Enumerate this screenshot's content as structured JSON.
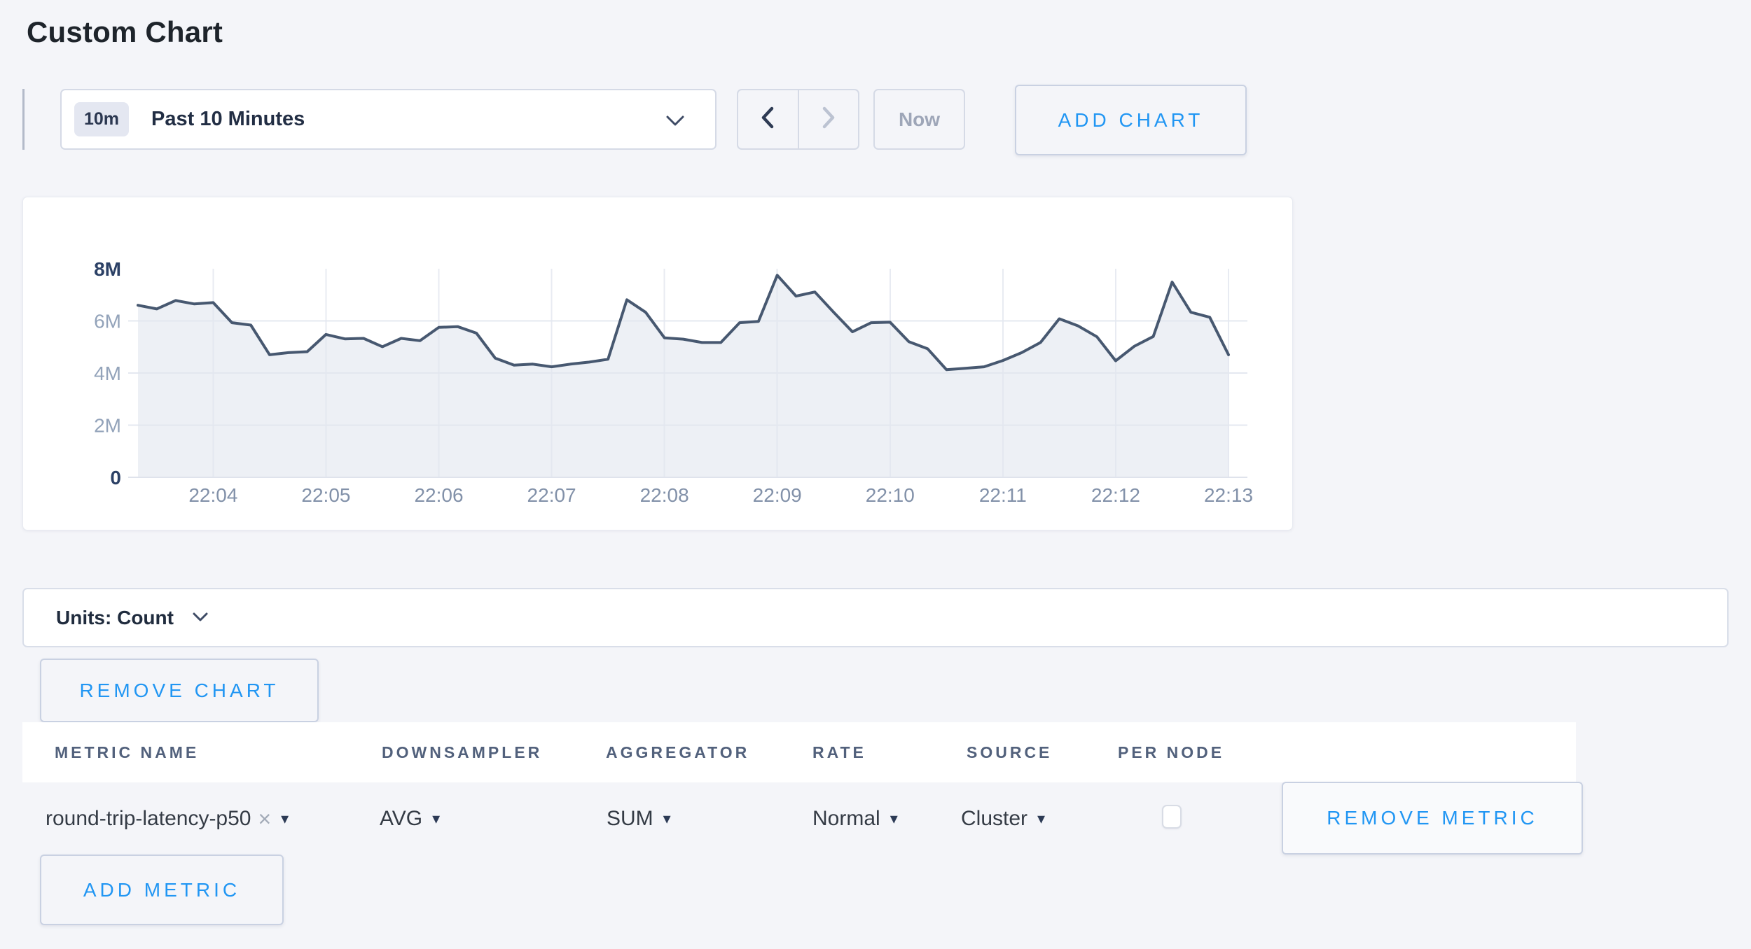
{
  "page": {
    "title": "Custom Chart"
  },
  "toolbar": {
    "time_badge": "10m",
    "time_label": "Past 10 Minutes",
    "now_label": "Now",
    "add_chart_label": "ADD CHART"
  },
  "icons": {
    "time_dropdown": "chevron-down",
    "prev": "chevron-left",
    "next": "chevron-right",
    "units_dropdown": "chevron-down",
    "select_caret": "triangle-down",
    "clear_metric": "x"
  },
  "chart_data": {
    "type": "area",
    "title": "",
    "unit": "Count",
    "ylim": [
      0,
      8000000
    ],
    "grid": true,
    "legend": "none",
    "y_ticks": [
      "0",
      "2M",
      "4M",
      "6M",
      "8M"
    ],
    "y_tick_values_millions": [
      0,
      2,
      4,
      6,
      8
    ],
    "x_ticks": [
      "22:04",
      "22:05",
      "22:06",
      "22:07",
      "22:08",
      "22:09",
      "22:10",
      "22:11",
      "22:12",
      "22:13"
    ],
    "x_tick_point_indices": [
      4,
      10,
      16,
      22,
      28,
      34,
      40,
      46,
      52,
      58
    ],
    "series": [
      {
        "name": "round-trip-latency-p50",
        "values_millions": [
          6.6,
          6.46,
          6.78,
          6.65,
          6.7,
          5.93,
          5.84,
          4.7,
          4.78,
          4.82,
          5.48,
          5.31,
          5.33,
          5.01,
          5.33,
          5.24,
          5.75,
          5.78,
          5.53,
          4.57,
          4.3,
          4.34,
          4.24,
          4.34,
          4.42,
          4.53,
          6.81,
          6.33,
          5.35,
          5.3,
          5.17,
          5.17,
          5.93,
          5.98,
          7.75,
          6.95,
          7.11,
          6.33,
          5.58,
          5.93,
          5.95,
          5.2,
          4.93,
          4.13,
          4.18,
          4.24,
          4.48,
          4.78,
          5.17,
          6.08,
          5.81,
          5.39,
          4.47,
          5.03,
          5.4,
          7.49,
          6.33,
          6.14,
          4.7
        ]
      }
    ]
  },
  "units_bar": {
    "label": "Units: Count"
  },
  "chart_actions": {
    "remove_chart_label": "REMOVE CHART"
  },
  "metrics_table": {
    "headers": [
      "METRIC NAME",
      "DOWNSAMPLER",
      "AGGREGATOR",
      "RATE",
      "SOURCE",
      "PER NODE"
    ],
    "rows": [
      {
        "metric_name": "round-trip-latency-p50",
        "downsampler": "AVG",
        "aggregator": "SUM",
        "rate": "Normal",
        "source": "Cluster",
        "per_node_checked": false,
        "remove_label": "REMOVE METRIC"
      }
    ],
    "add_metric_label": "ADD METRIC"
  },
  "colors": {
    "page_bg": "#f4f5f9",
    "accent_blue": "#2196f3",
    "series_line": "#475870",
    "series_fill": "#e2e6ef",
    "gridline": "#e8ebf2"
  }
}
